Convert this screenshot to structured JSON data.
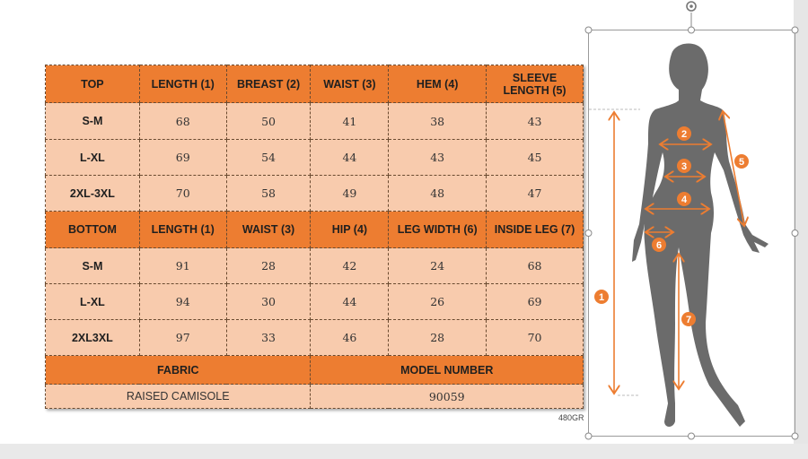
{
  "table": {
    "top_header": [
      "TOP",
      "LENGTH (1)",
      "BREAST (2)",
      "WAIST (3)",
      "HEM (4)",
      "SLEEVE LENGTH (5)"
    ],
    "top_rows": [
      [
        "S-M",
        "68",
        "50",
        "41",
        "38",
        "43"
      ],
      [
        "L-XL",
        "69",
        "54",
        "44",
        "43",
        "45"
      ],
      [
        "2XL-3XL",
        "70",
        "58",
        "49",
        "48",
        "47"
      ]
    ],
    "bottom_header": [
      "BOTTOM",
      "LENGTH (1)",
      "WAIST (3)",
      "HIP (4)",
      "LEG WIDTH (6)",
      "INSIDE LEG (7)"
    ],
    "bottom_rows": [
      [
        "S-M",
        "91",
        "28",
        "42",
        "24",
        "68"
      ],
      [
        "L-XL",
        "94",
        "30",
        "44",
        "26",
        "69"
      ],
      [
        "2XL3XL",
        "97",
        "33",
        "46",
        "28",
        "70"
      ]
    ],
    "fabric_label": "FABRIC",
    "model_label": "MODEL NUMBER",
    "fabric_value": "RAISED CAMISOLE",
    "model_value": "90059"
  },
  "caption": "480GR",
  "figure": {
    "markers": [
      "1",
      "2",
      "3",
      "4",
      "5",
      "6",
      "7"
    ],
    "accent_color": "#ed7d31",
    "silhouette_color": "#6b6b6b"
  }
}
